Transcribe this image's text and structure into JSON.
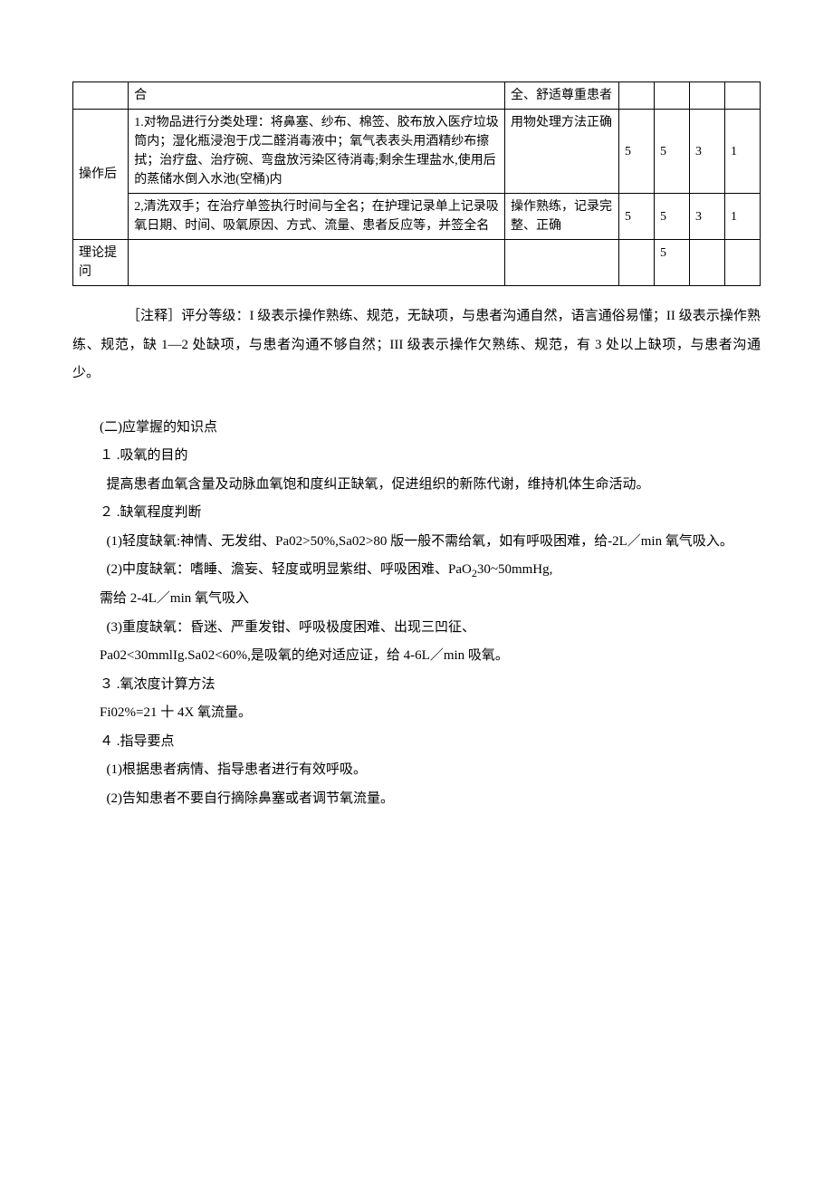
{
  "table": {
    "row0": {
      "phase": "",
      "step": "合",
      "criteria": "全、舒适尊重患者",
      "s1": "",
      "s2": "",
      "s3": "",
      "s4": ""
    },
    "row1": {
      "phase": "操作后",
      "step": "1.对物品进行分类处理：将鼻塞、纱布、棉签、胶布放入医疗垃圾筒内；湿化瓶浸泡于戊二醛消毒液中；氧气表表头用酒精纱布擦拭；治疗盘、治疗碗、弯盘放污染区待消毒;剩余生理盐水,使用后的蒸储水倒入水池(空桶)内",
      "criteria": "用物处理方法正确",
      "s1": "5",
      "s2": "5",
      "s3": "3",
      "s4": "1"
    },
    "row2": {
      "step": "2,清洗双手；在治疗单签执行时间与全名；在护理记录单上记录吸氧日期、时间、吸氧原因、方式、流量、患者反应等，并签全名",
      "criteria": "操作熟练，记录完整、正确",
      "s1": "5",
      "s2": "5",
      "s3": "3",
      "s4": "1"
    },
    "row3": {
      "phase": "理论提问",
      "step": "",
      "criteria": "",
      "s1": "",
      "s2": "5",
      "s3": "",
      "s4": ""
    }
  },
  "note": "［注释］评分等级：I 级表示操作熟练、规范，无缺项，与患者沟通自然，语言通俗易懂；II 级表示操作熟练、规范，缺 1—2 处缺项，与患者沟通不够自然；III 级表示操作欠熟练、规范，有 3 处以上缺项，与患者沟通少。",
  "section2_title": "(二)应掌握的知识点",
  "kp1_title": "１ .吸氧的目的",
  "kp1_body": "提高患者血氧含量及动脉血氧饱和度纠正缺氧，促进组织的新陈代谢，维持机体生命活动。",
  "kp2_title": "２ .缺氧程度判断",
  "kp2_1": "(1)轻度缺氧:神情、无发绀、Pa02>50%,Sa02>80 版一般不需给氧，如有呼吸困难，给-2L／min 氧气吸入。",
  "kp2_2a": "(2)中度缺氧：嗜睡、澹妄、轻度或明显紫绀、呼吸困难、PaO",
  "kp2_2b": "30~50mmHg,",
  "kp2_2c": "需给 2-4L／min 氧气吸入",
  "kp2_3a": "(3)重度缺氧：昏迷、严重发钳、呼吸极度困难、出现三凹征、",
  "kp2_3b": "Pa02<30mmlIg.Sa02<60%,是吸氧的绝对适应证，给 4-6L／min 吸氧。",
  "kp3_title": "３ .氧浓度计算方法",
  "kp3_body": "Fi02%=21 十 4X 氧流量。",
  "kp4_title": "４ .指导要点",
  "kp4_1": "(1)根据患者病情、指导患者进行有效呼吸。",
  "kp4_2": "(2)告知患者不要自行摘除鼻塞或者调节氧流量。"
}
